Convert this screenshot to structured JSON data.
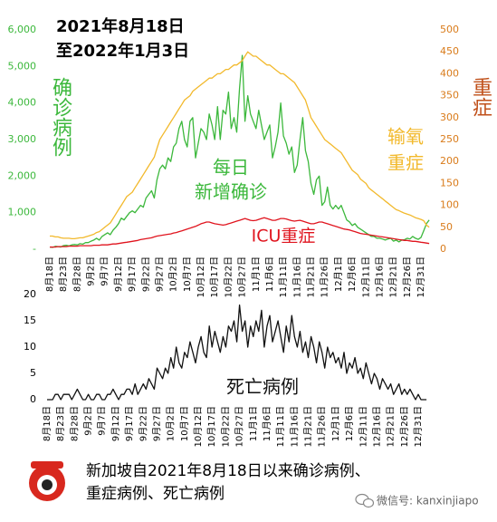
{
  "chart_data": [
    {
      "type": "line",
      "title": [
        "2021年8月18日",
        "至2022年1月3日"
      ],
      "ylabel": "确诊病例",
      "y2label": "重症",
      "categories": [
        "8月18日",
        null,
        null,
        null,
        null,
        "8月23日",
        null,
        null,
        null,
        null,
        "8月28日",
        null,
        null,
        null,
        null,
        "9月2日",
        null,
        null,
        null,
        null,
        "9月7日",
        null,
        null,
        null,
        null,
        "9月12日",
        null,
        null,
        null,
        null,
        "9月17日",
        null,
        null,
        null,
        null,
        "9月22日",
        null,
        null,
        null,
        null,
        "9月27日",
        null,
        null,
        null,
        null,
        "10月2日",
        null,
        null,
        null,
        null,
        "10月7日",
        null,
        null,
        null,
        null,
        "10月12日",
        null,
        null,
        null,
        null,
        "10月17日",
        null,
        null,
        null,
        null,
        "10月22日",
        null,
        null,
        null,
        null,
        "10月27日",
        null,
        null,
        null,
        null,
        "11月1日",
        null,
        null,
        null,
        null,
        "11月6日",
        null,
        null,
        null,
        null,
        "11月11日",
        null,
        null,
        null,
        null,
        "11月16日",
        null,
        null,
        null,
        null,
        "11月21日",
        null,
        null,
        null,
        null,
        "11月26日",
        null,
        null,
        null,
        null,
        "12月1日",
        null,
        null,
        null,
        null,
        "12月6日",
        null,
        null,
        null,
        null,
        "12月11日",
        null,
        null,
        null,
        null,
        "12月16日",
        null,
        null,
        null,
        null,
        "12月21日",
        null,
        null,
        null,
        null,
        "12月26日",
        null,
        null,
        null,
        null,
        "12月31日",
        null,
        null,
        null
      ],
      "ylim": [
        0,
        6000
      ],
      "yticks": [
        {
          "value": 0,
          "label": "-"
        },
        {
          "value": 1000,
          "label": "1,000"
        },
        {
          "value": 2000,
          "label": "2,000"
        },
        {
          "value": 3000,
          "label": "3,000"
        },
        {
          "value": 4000,
          "label": "4,000"
        },
        {
          "value": 5000,
          "label": "5,000"
        },
        {
          "value": 6000,
          "label": "6,000"
        }
      ],
      "y2lim": [
        0,
        500
      ],
      "y2ticks": [
        0,
        50,
        100,
        150,
        200,
        250,
        300,
        350,
        400,
        450,
        500
      ],
      "series": [
        {
          "name": [
            "每日",
            "新增确诊"
          ],
          "color": "#3cb83c",
          "axis": "y",
          "values": [
            60,
            50,
            80,
            70,
            60,
            100,
            110,
            90,
            120,
            130,
            120,
            150,
            140,
            180,
            180,
            220,
            250,
            300,
            250,
            350,
            400,
            450,
            400,
            520,
            600,
            700,
            850,
            800,
            900,
            1000,
            1050,
            1000,
            1100,
            1200,
            1150,
            1400,
            1500,
            1600,
            1400,
            1900,
            2200,
            2300,
            2200,
            2500,
            2400,
            2800,
            2900,
            3300,
            3500,
            3000,
            2800,
            3500,
            3600,
            2500,
            2900,
            3300,
            3200,
            3000,
            3700,
            3400,
            3000,
            3900,
            3000,
            3800,
            3700,
            4300,
            3300,
            3600,
            3200,
            4400,
            5300,
            3500,
            4200,
            3700,
            3500,
            3300,
            3800,
            3400,
            3000,
            3200,
            3400,
            2500,
            2800,
            3200,
            4000,
            3100,
            2900,
            2600,
            2800,
            2100,
            2300,
            3000,
            3600,
            2700,
            2400,
            1800,
            1500,
            1900,
            2000,
            1200,
            1300,
            1700,
            1200,
            1100,
            1200,
            1100,
            1200,
            1000,
            800,
            750,
            650,
            700,
            600,
            550,
            500,
            450,
            400,
            350,
            350,
            300,
            300,
            280,
            250,
            280,
            300,
            220,
            250,
            200,
            250,
            260,
            300,
            280,
            350,
            300,
            270,
            320,
            500,
            700,
            800
          ]
        },
        {
          "name": [
            "输氧",
            "重症"
          ],
          "color": "#f2b92c",
          "axis": "y2",
          "values": [
            30,
            30,
            28,
            28,
            26,
            25,
            25,
            25,
            24,
            24,
            25,
            26,
            26,
            28,
            30,
            32,
            34,
            38,
            40,
            45,
            50,
            55,
            60,
            70,
            80,
            90,
            100,
            110,
            120,
            125,
            130,
            140,
            150,
            160,
            170,
            180,
            190,
            200,
            210,
            230,
            250,
            260,
            270,
            280,
            290,
            300,
            310,
            320,
            330,
            340,
            345,
            350,
            360,
            365,
            370,
            375,
            380,
            385,
            390,
            390,
            395,
            400,
            400,
            405,
            410,
            410,
            415,
            420,
            420,
            425,
            430,
            440,
            450,
            445,
            440,
            440,
            435,
            430,
            425,
            420,
            420,
            415,
            410,
            405,
            400,
            400,
            395,
            390,
            385,
            380,
            370,
            360,
            350,
            340,
            320,
            300,
            290,
            280,
            270,
            260,
            250,
            245,
            240,
            235,
            230,
            225,
            220,
            210,
            200,
            190,
            180,
            175,
            170,
            160,
            155,
            150,
            140,
            135,
            130,
            125,
            120,
            115,
            110,
            105,
            100,
            95,
            90,
            88,
            85,
            82,
            80,
            78,
            75,
            72,
            70,
            68,
            65,
            55,
            50
          ]
        },
        {
          "name": [
            "ICU重症"
          ],
          "color": "#e0141e",
          "axis": "y2",
          "values": [
            5,
            5,
            5,
            6,
            6,
            6,
            6,
            7,
            7,
            7,
            7,
            8,
            8,
            8,
            8,
            8,
            9,
            9,
            9,
            10,
            10,
            10,
            11,
            12,
            12,
            13,
            14,
            15,
            16,
            17,
            18,
            19,
            20,
            22,
            23,
            24,
            25,
            26,
            28,
            30,
            31,
            32,
            33,
            34,
            35,
            37,
            38,
            40,
            42,
            44,
            46,
            48,
            50,
            52,
            55,
            58,
            60,
            62,
            62,
            60,
            58,
            57,
            56,
            55,
            56,
            58,
            60,
            62,
            64,
            66,
            68,
            70,
            68,
            66,
            65,
            66,
            68,
            70,
            72,
            70,
            68,
            66,
            66,
            68,
            70,
            70,
            69,
            67,
            65,
            64,
            65,
            66,
            64,
            62,
            60,
            58,
            58,
            60,
            62,
            62,
            60,
            58,
            56,
            54,
            52,
            50,
            48,
            46,
            45,
            44,
            42,
            40,
            38,
            36,
            35,
            34,
            33,
            32,
            31,
            30,
            29,
            28,
            27,
            26,
            25,
            24,
            23,
            22,
            21,
            20,
            20,
            19,
            18,
            18,
            17,
            16,
            15,
            14,
            13
          ]
        }
      ]
    },
    {
      "type": "line",
      "categories": [
        "8月18日",
        null,
        null,
        null,
        null,
        "8月23日",
        null,
        null,
        null,
        null,
        "8月28日",
        null,
        null,
        null,
        null,
        "9月2日",
        null,
        null,
        null,
        null,
        "9月7日",
        null,
        null,
        null,
        null,
        "9月12日",
        null,
        null,
        null,
        null,
        "9月17日",
        null,
        null,
        null,
        null,
        "9月22日",
        null,
        null,
        null,
        null,
        "9月27日",
        null,
        null,
        null,
        null,
        "10月2日",
        null,
        null,
        null,
        null,
        "10月7日",
        null,
        null,
        null,
        null,
        "10月12日",
        null,
        null,
        null,
        null,
        "10月17日",
        null,
        null,
        null,
        null,
        "10月22日",
        null,
        null,
        null,
        null,
        "10月27日",
        null,
        null,
        null,
        null,
        "11月1日",
        null,
        null,
        null,
        null,
        "11月6日",
        null,
        null,
        null,
        null,
        "11月11日",
        null,
        null,
        null,
        null,
        "11月16日",
        null,
        null,
        null,
        null,
        "11月21日",
        null,
        null,
        null,
        null,
        "11月26日",
        null,
        null,
        null,
        null,
        "12月1日",
        null,
        null,
        null,
        null,
        "12月6日",
        null,
        null,
        null,
        null,
        "12月11日",
        null,
        null,
        null,
        null,
        "12月16日",
        null,
        null,
        null,
        null,
        "12月21日",
        null,
        null,
        null,
        null,
        "12月26日",
        null,
        null,
        null,
        null,
        "12月31日",
        null,
        null,
        null
      ],
      "ylim": [
        0,
        20
      ],
      "yticks": [
        0,
        5,
        10,
        15,
        20
      ],
      "series": [
        {
          "name": [
            "死亡病例"
          ],
          "color": "#111111",
          "axis": "y",
          "values": [
            0,
            0,
            0,
            1,
            1,
            0,
            1,
            1,
            1,
            0,
            1,
            2,
            1,
            0,
            0,
            1,
            0,
            0,
            1,
            1,
            0,
            0,
            1,
            1,
            2,
            1,
            0,
            1,
            1,
            2,
            2,
            1,
            3,
            1,
            2,
            3,
            2,
            4,
            3,
            2,
            6,
            5,
            4,
            6,
            5,
            8,
            6,
            10,
            7,
            6,
            9,
            8,
            11,
            9,
            7,
            10,
            12,
            9,
            8,
            14,
            10,
            13,
            11,
            9,
            12,
            10,
            14,
            13,
            15,
            11,
            18,
            13,
            15,
            10,
            14,
            12,
            15,
            13,
            17,
            10,
            14,
            16,
            11,
            13,
            15,
            12,
            9,
            14,
            11,
            16,
            12,
            10,
            13,
            9,
            11,
            8,
            12,
            10,
            7,
            11,
            9,
            6,
            10,
            8,
            9,
            7,
            8,
            6,
            9,
            5,
            7,
            6,
            8,
            5,
            6,
            4,
            7,
            5,
            3,
            5,
            4,
            2,
            4,
            3,
            2,
            3,
            1,
            2,
            3,
            1,
            2,
            1,
            2,
            1,
            0,
            1,
            0,
            0,
            0
          ]
        }
      ]
    }
  ],
  "caption": [
    "新加坡自2021年8月18日以来确诊病例、",
    "重症病例、死亡病例"
  ],
  "watermark": "微信号: kanxinjiapo"
}
